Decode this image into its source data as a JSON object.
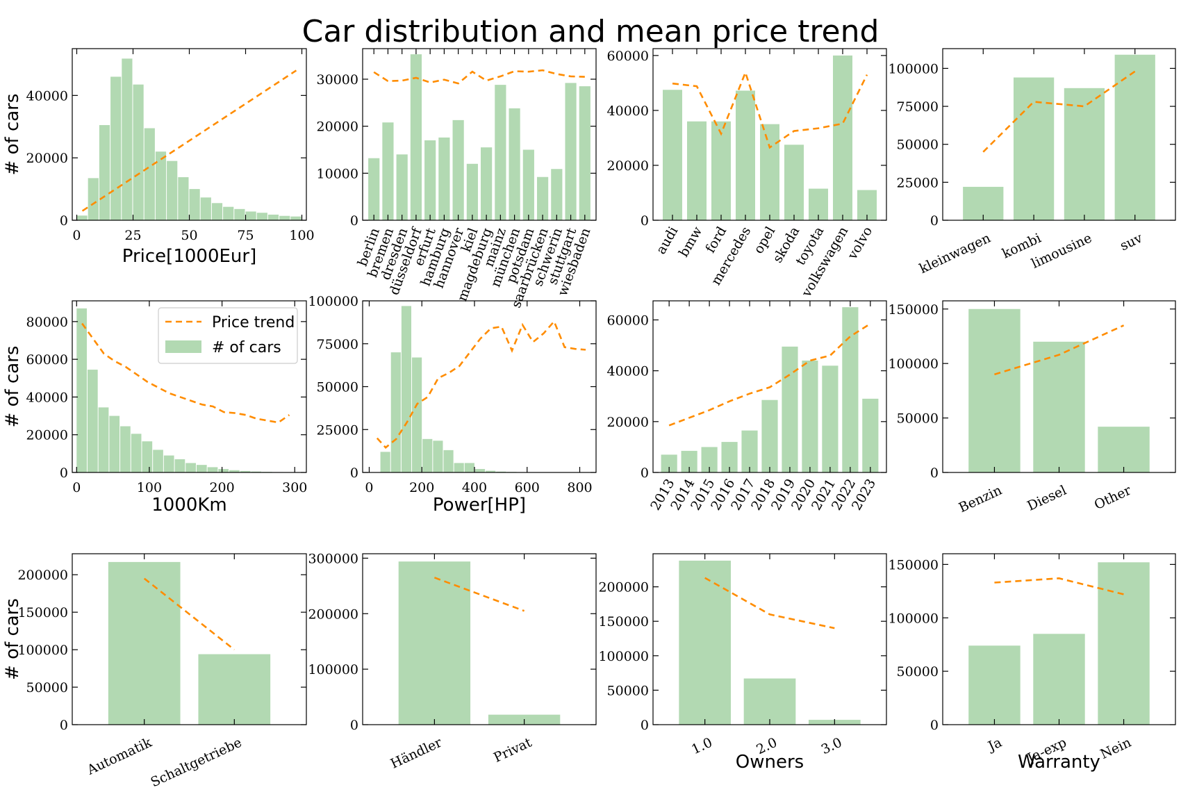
{
  "figure": {
    "title": "Car distribution and mean price trend",
    "bar_color": "#b2d9b2",
    "line_color": "#ff8c00",
    "legend": {
      "line_label": "Price trend",
      "bar_label": "# of cars",
      "placement": "upper-right of panel 5"
    }
  },
  "chart_data": [
    {
      "type": "bar",
      "kind": "histogram",
      "categories": [
        "2.5",
        "7.5",
        "12.5",
        "17.5",
        "22.5",
        "27.5",
        "32.5",
        "37.5",
        "42.5",
        "47.5",
        "52.5",
        "57.5",
        "62.5",
        "67.5",
        "72.5",
        "77.5",
        "82.5",
        "87.5",
        "92.5",
        "97.5"
      ],
      "x": [
        2.5,
        7.5,
        12.5,
        17.5,
        22.5,
        27.5,
        32.5,
        37.5,
        42.5,
        47.5,
        52.5,
        57.5,
        62.5,
        67.5,
        72.5,
        77.5,
        82.5,
        87.5,
        92.5,
        97.5
      ],
      "bin_width": 5,
      "values": [
        1500,
        13500,
        30500,
        46000,
        51800,
        43500,
        29500,
        22000,
        19000,
        13800,
        10000,
        7300,
        5500,
        4300,
        3600,
        2800,
        2400,
        1800,
        1400,
        1200
      ],
      "line_x": [
        2.5,
        97.5
      ],
      "line_y": [
        3000,
        48000
      ],
      "xlim": [
        -2,
        102
      ],
      "ylim": [
        0,
        55000
      ],
      "xticks": [
        0,
        25,
        50,
        75,
        100
      ],
      "yticks": [
        0,
        20000,
        40000
      ],
      "xlabel": "Price[1000Eur]",
      "ylabel": "# of cars"
    },
    {
      "type": "bar",
      "categories": [
        "berlin",
        "bremen",
        "dresden",
        "düsseldorf",
        "erfurt",
        "hamburg",
        "hannover",
        "kiel",
        "magdeburg",
        "mainz",
        "münchen",
        "potsdam",
        "saarbrücken",
        "schwerin",
        "stuttgart",
        "wiesbaden"
      ],
      "values": [
        13200,
        20800,
        14000,
        35300,
        17000,
        17600,
        21300,
        12000,
        15500,
        28800,
        23800,
        15000,
        9200,
        10900,
        29200,
        28500
      ],
      "line_y": [
        31500,
        29600,
        29700,
        30300,
        29300,
        29900,
        29100,
        31600,
        29700,
        30600,
        31700,
        31600,
        31900,
        31100,
        30600,
        30500
      ],
      "ylim": [
        0,
        36500
      ],
      "yticks": [
        0,
        10000,
        20000,
        30000
      ],
      "xlabel": "",
      "ylabel": "",
      "xrot": 70
    },
    {
      "type": "bar",
      "categories": [
        "audi",
        "bmw",
        "ford",
        "mercedes",
        "opel",
        "skoda",
        "toyota",
        "volkswagen",
        "volvo"
      ],
      "values": [
        47500,
        36000,
        36000,
        47200,
        35000,
        27500,
        11500,
        60000,
        11000
      ],
      "line_y": [
        49800,
        48800,
        31500,
        53800,
        26500,
        32500,
        33500,
        35200,
        53000
      ],
      "ylim": [
        0,
        62500
      ],
      "yticks": [
        0,
        20000,
        40000,
        60000
      ],
      "xlabel": "",
      "ylabel": "",
      "xrot": 60
    },
    {
      "type": "bar",
      "categories": [
        "kleinwagen",
        "kombi",
        "limousine",
        "suv"
      ],
      "values": [
        22000,
        94000,
        87000,
        109000
      ],
      "line_y": [
        45000,
        78000,
        75000,
        98000
      ],
      "ylim": [
        0,
        113000
      ],
      "yticks": [
        0,
        25000,
        50000,
        75000,
        100000
      ],
      "xlabel": "",
      "ylabel": "",
      "xrot": 25
    },
    {
      "type": "bar",
      "kind": "histogram",
      "categories": [
        "7.5",
        "22.5",
        "37.5",
        "52.5",
        "67.5",
        "82.5",
        "97.5",
        "112.5",
        "127.5",
        "142.5",
        "157.5",
        "172.5",
        "187.5",
        "202.5",
        "217.5",
        "232.5",
        "247.5",
        "262.5",
        "277.5",
        "292.5"
      ],
      "x": [
        7.5,
        22.5,
        37.5,
        52.5,
        67.5,
        82.5,
        97.5,
        112.5,
        127.5,
        142.5,
        157.5,
        172.5,
        187.5,
        202.5,
        217.5,
        232.5,
        247.5,
        262.5,
        277.5,
        292.5
      ],
      "bin_width": 15,
      "values": [
        87000,
        54500,
        34500,
        30000,
        24500,
        20500,
        16500,
        12000,
        9000,
        7000,
        5000,
        4000,
        2800,
        1800,
        1200,
        800,
        500,
        300,
        200,
        100
      ],
      "line_x": [
        7.5,
        22.5,
        37.5,
        52.5,
        67.5,
        82.5,
        97.5,
        112.5,
        127.5,
        142.5,
        157.5,
        172.5,
        187.5,
        202.5,
        217.5,
        232.5,
        247.5,
        262.5,
        277.5,
        292.5
      ],
      "line_y": [
        79000,
        71000,
        63000,
        59000,
        56000,
        52000,
        48000,
        45000,
        42000,
        40000,
        38000,
        36000,
        35000,
        32000,
        31500,
        30500,
        28500,
        27500,
        26500,
        30500
      ],
      "xlim": [
        -6,
        316
      ],
      "ylim": [
        0,
        91000
      ],
      "xticks": [
        0,
        100,
        200,
        300
      ],
      "yticks": [
        0,
        20000,
        40000,
        60000,
        80000
      ],
      "xlabel": "1000Km",
      "ylabel": "# of cars"
    },
    {
      "type": "bar",
      "kind": "histogram",
      "categories": [
        "62.5",
        "102.5",
        "142.5",
        "182.5",
        "222.5",
        "262.5",
        "302.5",
        "342.5",
        "382.5",
        "422.5",
        "462.5",
        "502.5",
        "542.5",
        "582.5",
        "622.5",
        "662.5",
        "702.5",
        "742.5",
        "782.5",
        "822.5"
      ],
      "x": [
        62.5,
        102.5,
        142.5,
        182.5,
        222.5,
        262.5,
        302.5,
        342.5,
        382.5,
        422.5,
        462.5,
        502.5,
        542.5,
        582.5,
        622.5,
        662.5,
        702.5,
        742.5,
        782.5,
        822.5
      ],
      "bin_width": 40,
      "values": [
        12000,
        70000,
        97000,
        67000,
        19500,
        18500,
        13000,
        5500,
        5500,
        2000,
        1000,
        500,
        300,
        200,
        100,
        100,
        100,
        100,
        100,
        100
      ],
      "line_x": [
        30,
        62.5,
        102.5,
        142.5,
        182.5,
        222.5,
        262.5,
        302.5,
        342.5,
        382.5,
        422.5,
        462.5,
        502.5,
        542.5,
        582.5,
        622.5,
        662.5,
        702.5,
        742.5,
        782.5,
        822.5
      ],
      "line_y": [
        20000,
        14500,
        19500,
        29000,
        40000,
        44000,
        55000,
        58000,
        62000,
        70000,
        78000,
        84000,
        85000,
        71000,
        86000,
        76000,
        81000,
        88000,
        73000,
        72000,
        71500
      ],
      "xlim": [
        -25,
        862
      ],
      "ylim": [
        0,
        100000
      ],
      "xticks": [
        0,
        200,
        400,
        600,
        800
      ],
      "yticks": [
        0,
        25000,
        50000,
        75000,
        100000
      ],
      "xlabel": "Power[HP]",
      "ylabel": ""
    },
    {
      "type": "bar",
      "categories": [
        "2013",
        "2014",
        "2015",
        "2016",
        "2017",
        "2018",
        "2019",
        "2020",
        "2021",
        "2022",
        "2023"
      ],
      "values": [
        7000,
        8500,
        10000,
        12000,
        16500,
        28500,
        49500,
        44000,
        42000,
        65000,
        29000
      ],
      "line_y": [
        18500,
        21500,
        24500,
        28000,
        31000,
        33500,
        38500,
        44000,
        46000,
        53500,
        58500
      ],
      "ylim": [
        0,
        67500
      ],
      "yticks": [
        0,
        20000,
        40000,
        60000
      ],
      "xlabel": "",
      "ylabel": "",
      "xrot": 60
    },
    {
      "type": "bar",
      "categories": [
        "Benzin",
        "Diesel",
        "Other"
      ],
      "values": [
        150000,
        120000,
        42000
      ],
      "line_y": [
        90000,
        108000,
        135000
      ],
      "ylim": [
        0,
        157500
      ],
      "yticks": [
        0,
        50000,
        100000,
        150000
      ],
      "xlabel": "",
      "ylabel": "",
      "xrot": 25
    },
    {
      "type": "bar",
      "categories": [
        "Automatik",
        "Schaltgetriebe"
      ],
      "values": [
        217000,
        94000
      ],
      "line_y": [
        195000,
        100000
      ],
      "ylim": [
        0,
        228000
      ],
      "yticks": [
        0,
        50000,
        100000,
        150000,
        200000
      ],
      "xlabel": "",
      "ylabel": "# of cars",
      "xrot": 25
    },
    {
      "type": "bar",
      "categories": [
        "Händler",
        "Privat"
      ],
      "values": [
        294000,
        18000
      ],
      "line_y": [
        265000,
        205000
      ],
      "ylim": [
        0,
        308000
      ],
      "yticks": [
        0,
        100000,
        200000,
        300000
      ],
      "xlabel": "",
      "ylabel": "",
      "xrot": 25
    },
    {
      "type": "bar",
      "categories": [
        "1.0",
        "2.0",
        "3.0"
      ],
      "values": [
        238000,
        67000,
        7000
      ],
      "line_y": [
        213000,
        160000,
        140000
      ],
      "ylim": [
        0,
        248000
      ],
      "yticks": [
        0,
        50000,
        100000,
        150000,
        200000
      ],
      "xlabel": "Owners",
      "ylabel": "",
      "xrot": 25
    },
    {
      "type": "bar",
      "categories": [
        "Ja",
        "Ja-exp",
        "Nein"
      ],
      "values": [
        74000,
        85000,
        152000
      ],
      "line_y": [
        133000,
        137000,
        122000
      ],
      "ylim": [
        0,
        160000
      ],
      "yticks": [
        0,
        50000,
        100000,
        150000
      ],
      "xlabel": "Warranty",
      "ylabel": "",
      "xrot": 25
    }
  ]
}
